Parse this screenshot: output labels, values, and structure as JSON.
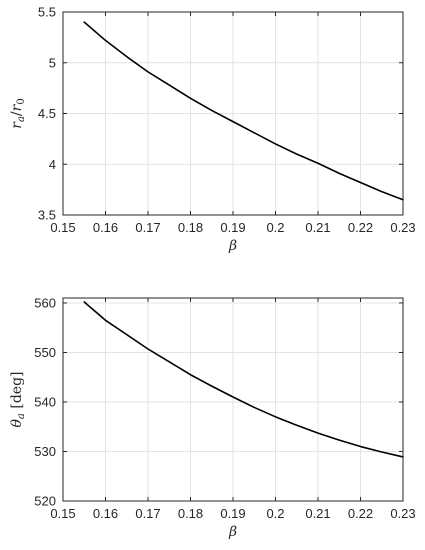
{
  "chart_data": [
    {
      "type": "line",
      "title": "",
      "xlabel": "β",
      "ylabel": {
        "main": "r",
        "main_sub": "a",
        "sep": "/",
        "ref": "r",
        "ref_sub": "0"
      },
      "xlim": [
        0.15,
        0.23
      ],
      "ylim": [
        3.5,
        5.5
      ],
      "xticks": [
        0.15,
        0.16,
        0.17,
        0.18,
        0.19,
        0.2,
        0.21,
        0.22,
        0.23
      ],
      "xtick_labels": [
        "0.15",
        "0.16",
        "0.17",
        "0.18",
        "0.19",
        "0.2",
        "0.21",
        "0.22",
        "0.23"
      ],
      "yticks": [
        3.5,
        4,
        4.5,
        5,
        5.5
      ],
      "ytick_labels": [
        "3.5",
        "4",
        "4.5",
        "5",
        "5.5"
      ],
      "grid": true,
      "series": [
        {
          "color": "#000000",
          "x": [
            0.155,
            0.16,
            0.165,
            0.17,
            0.175,
            0.18,
            0.185,
            0.19,
            0.195,
            0.2,
            0.205,
            0.21,
            0.215,
            0.22,
            0.225,
            0.23
          ],
          "y": [
            5.4,
            5.22,
            5.06,
            4.91,
            4.78,
            4.65,
            4.53,
            4.42,
            4.31,
            4.2,
            4.1,
            4.01,
            3.91,
            3.82,
            3.73,
            3.65
          ]
        }
      ]
    },
    {
      "type": "line",
      "title": "",
      "xlabel": "β",
      "ylabel": {
        "main": "θ",
        "main_sub": "a",
        "unit": "[deg]"
      },
      "xlim": [
        0.15,
        0.23
      ],
      "ylim": [
        520,
        561
      ],
      "xticks": [
        0.15,
        0.16,
        0.17,
        0.18,
        0.19,
        0.2,
        0.21,
        0.22,
        0.23
      ],
      "xtick_labels": [
        "0.15",
        "0.16",
        "0.17",
        "0.18",
        "0.19",
        "0.2",
        "0.21",
        "0.22",
        "0.23"
      ],
      "yticks": [
        520,
        530,
        540,
        550,
        560
      ],
      "ytick_labels": [
        "520",
        "530",
        "540",
        "550",
        "560"
      ],
      "grid": true,
      "series": [
        {
          "color": "#000000",
          "x": [
            0.155,
            0.16,
            0.165,
            0.17,
            0.175,
            0.18,
            0.185,
            0.19,
            0.195,
            0.2,
            0.205,
            0.21,
            0.215,
            0.22,
            0.225,
            0.23
          ],
          "y": [
            560.2,
            556.5,
            553.6,
            550.7,
            548.1,
            545.5,
            543.2,
            541.0,
            538.9,
            537.0,
            535.3,
            533.7,
            532.3,
            531.0,
            529.9,
            528.9
          ]
        }
      ]
    }
  ]
}
